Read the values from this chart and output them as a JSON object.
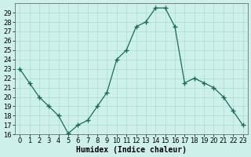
{
  "x": [
    0,
    1,
    2,
    3,
    4,
    5,
    6,
    7,
    8,
    9,
    10,
    11,
    12,
    13,
    14,
    15,
    16,
    17,
    18,
    19,
    20,
    21,
    22,
    23
  ],
  "y": [
    23,
    21.5,
    20,
    19,
    18,
    16.1,
    17,
    17.5,
    19,
    20.5,
    24,
    25,
    27.5,
    28,
    29.5,
    29.5,
    27.5,
    21.5,
    22,
    21.5,
    21,
    20,
    18.5,
    17
  ],
  "xlabel": "Humidex (Indice chaleur)",
  "xlim": [
    -0.5,
    23.5
  ],
  "ylim": [
    16,
    30
  ],
  "yticks": [
    16,
    17,
    18,
    19,
    20,
    21,
    22,
    23,
    24,
    25,
    26,
    27,
    28,
    29
  ],
  "xticks": [
    0,
    1,
    2,
    3,
    4,
    5,
    6,
    7,
    8,
    9,
    10,
    11,
    12,
    13,
    14,
    15,
    16,
    17,
    18,
    19,
    20,
    21,
    22,
    23
  ],
  "line_color": "#1a6b5a",
  "marker": "+",
  "bg_color": "#cef0eb",
  "grid_color": "#a8ddd7",
  "xlabel_fontsize": 7,
  "tick_fontsize": 6,
  "linewidth": 0.9,
  "markersize": 4,
  "markeredgewidth": 1.0
}
